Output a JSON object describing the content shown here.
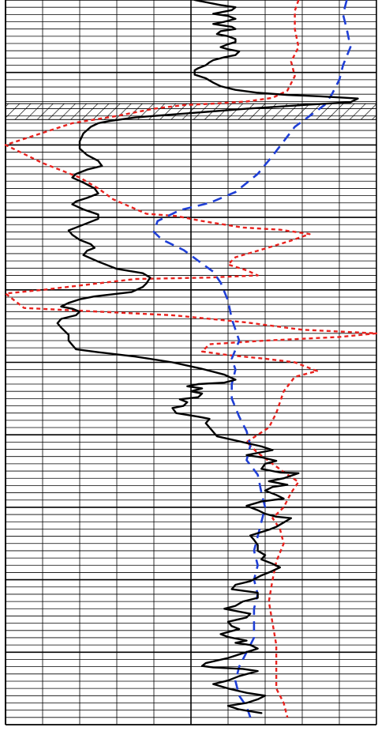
{
  "chart_data": {
    "type": "line",
    "title": "",
    "xlabel": "",
    "ylabel": "",
    "xlim": [
      0,
      10
    ],
    "ylim": [
      0,
      100
    ],
    "y_direction": "down",
    "grid": true,
    "grid_x_minor_step": 1,
    "grid_x_major_step": 5,
    "grid_y_minor_step": 1,
    "grid_y_major_step": 10,
    "legend": "none",
    "hatched_interval": {
      "y_top": 14.3,
      "y_bottom": 16.5,
      "color": "#000000"
    },
    "series": [
      {
        "style": "solid",
        "color": "#000000",
        "points": [
          [
            5.1,
            0.0
          ],
          [
            5.8,
            0.7
          ],
          [
            6.2,
            1.0
          ],
          [
            6.1,
            1.4
          ],
          [
            5.9,
            1.6
          ],
          [
            5.6,
            1.9
          ],
          [
            6.0,
            2.2
          ],
          [
            6.2,
            2.6
          ],
          [
            5.9,
            3.0
          ],
          [
            5.6,
            3.3
          ],
          [
            6.1,
            3.7
          ],
          [
            6.2,
            4.0
          ],
          [
            5.8,
            4.3
          ],
          [
            5.7,
            4.7
          ],
          [
            6.0,
            5.0
          ],
          [
            6.2,
            5.4
          ],
          [
            6.2,
            5.8
          ],
          [
            6.0,
            6.1
          ],
          [
            5.8,
            6.5
          ],
          [
            6.0,
            6.8
          ],
          [
            6.3,
            7.1
          ],
          [
            6.2,
            7.6
          ],
          [
            5.9,
            7.9
          ],
          [
            5.6,
            8.3
          ],
          [
            5.5,
            8.6
          ],
          [
            5.4,
            9.0
          ],
          [
            5.2,
            9.4
          ],
          [
            5.1,
            9.7
          ],
          [
            5.1,
            10.3
          ],
          [
            5.4,
            10.8
          ],
          [
            5.6,
            11.4
          ],
          [
            5.8,
            11.9
          ],
          [
            6.2,
            12.4
          ],
          [
            6.8,
            12.8
          ],
          [
            7.6,
            13.1
          ],
          [
            8.5,
            13.3
          ],
          [
            9.2,
            13.5
          ],
          [
            9.5,
            13.6
          ],
          [
            9.3,
            14.1
          ],
          [
            8.0,
            14.5
          ],
          [
            6.5,
            15.0
          ],
          [
            5.0,
            15.6
          ],
          [
            3.5,
            16.2
          ],
          [
            2.8,
            16.7
          ],
          [
            2.5,
            17.0
          ],
          [
            2.3,
            17.5
          ],
          [
            2.1,
            18.4
          ],
          [
            2.0,
            19.5
          ],
          [
            2.0,
            20.5
          ],
          [
            2.2,
            21.4
          ],
          [
            2.5,
            22.2
          ],
          [
            2.6,
            22.9
          ],
          [
            2.2,
            23.4
          ],
          [
            1.9,
            24.0
          ],
          [
            1.8,
            24.5
          ],
          [
            2.1,
            25.2
          ],
          [
            2.4,
            26.0
          ],
          [
            2.5,
            26.7
          ],
          [
            2.2,
            27.3
          ],
          [
            1.9,
            27.8
          ],
          [
            1.8,
            28.2
          ],
          [
            2.1,
            28.9
          ],
          [
            2.5,
            29.6
          ],
          [
            2.5,
            30.2
          ],
          [
            2.2,
            30.8
          ],
          [
            1.9,
            31.4
          ],
          [
            1.7,
            31.8
          ],
          [
            1.8,
            32.4
          ],
          [
            2.0,
            33.1
          ],
          [
            2.3,
            33.7
          ],
          [
            2.4,
            34.2
          ],
          [
            2.2,
            34.6
          ],
          [
            2.1,
            35.2
          ],
          [
            2.5,
            36.1
          ],
          [
            3.0,
            37.1
          ],
          [
            3.7,
            37.7
          ],
          [
            3.9,
            38.3
          ],
          [
            3.8,
            39.1
          ],
          [
            3.7,
            39.6
          ],
          [
            3.4,
            40.3
          ],
          [
            2.9,
            40.6
          ],
          [
            2.4,
            40.9
          ],
          [
            2.0,
            41.3
          ],
          [
            1.7,
            41.8
          ],
          [
            1.5,
            42.3
          ],
          [
            1.8,
            42.6
          ],
          [
            2.0,
            43.0
          ],
          [
            1.9,
            43.5
          ],
          [
            1.5,
            44.0
          ],
          [
            1.4,
            44.6
          ],
          [
            1.5,
            45.2
          ],
          [
            1.6,
            45.7
          ],
          [
            1.7,
            46.2
          ],
          [
            1.7,
            47.0
          ],
          [
            1.9,
            48.2
          ],
          [
            2.5,
            48.6
          ],
          [
            3.5,
            49.2
          ],
          [
            4.5,
            50.0
          ],
          [
            5.3,
            50.9
          ],
          [
            5.9,
            51.7
          ],
          [
            6.2,
            52.4
          ],
          [
            5.9,
            52.8
          ],
          [
            5.2,
            53.0
          ],
          [
            4.9,
            53.3
          ],
          [
            5.3,
            53.6
          ],
          [
            5.0,
            54.0
          ],
          [
            5.3,
            54.3
          ],
          [
            5.2,
            54.8
          ],
          [
            4.7,
            55.1
          ],
          [
            4.9,
            55.5
          ],
          [
            4.8,
            56.0
          ],
          [
            4.5,
            56.3
          ],
          [
            4.6,
            57.0
          ],
          [
            5.2,
            57.5
          ],
          [
            5.5,
            57.8
          ],
          [
            5.4,
            58.4
          ],
          [
            5.5,
            59.0
          ],
          [
            5.7,
            60.2
          ],
          [
            6.3,
            60.9
          ],
          [
            6.9,
            61.6
          ],
          [
            7.2,
            62.1
          ],
          [
            6.8,
            62.5
          ],
          [
            6.5,
            62.8
          ],
          [
            6.9,
            63.1
          ],
          [
            7.3,
            63.6
          ],
          [
            7.0,
            64.0
          ],
          [
            6.9,
            64.7
          ],
          [
            7.4,
            65.2
          ],
          [
            7.9,
            65.3
          ],
          [
            7.5,
            66.0
          ],
          [
            7.1,
            66.4
          ],
          [
            7.6,
            66.9
          ],
          [
            7.2,
            67.2
          ],
          [
            7.0,
            67.7
          ],
          [
            7.3,
            68.3
          ],
          [
            7.5,
            68.8
          ],
          [
            6.9,
            69.2
          ],
          [
            6.5,
            69.8
          ],
          [
            6.8,
            70.4
          ],
          [
            7.0,
            70.9
          ],
          [
            7.3,
            71.3
          ],
          [
            7.7,
            71.5
          ],
          [
            7.5,
            72.1
          ],
          [
            7.3,
            72.7
          ],
          [
            7.1,
            73.1
          ],
          [
            6.6,
            73.9
          ],
          [
            6.7,
            74.5
          ],
          [
            6.8,
            75.2
          ],
          [
            6.8,
            76.0
          ],
          [
            7.0,
            76.6
          ],
          [
            6.9,
            77.2
          ],
          [
            7.2,
            77.8
          ],
          [
            7.4,
            78.3
          ],
          [
            7.1,
            79.0
          ],
          [
            6.9,
            79.4
          ],
          [
            6.6,
            80.2
          ],
          [
            6.2,
            80.7
          ],
          [
            6.1,
            81.3
          ],
          [
            6.8,
            81.8
          ],
          [
            6.8,
            82.5
          ],
          [
            6.4,
            83.0
          ],
          [
            6.2,
            83.6
          ],
          [
            5.9,
            84.0
          ],
          [
            6.6,
            84.7
          ],
          [
            6.5,
            85.2
          ],
          [
            6.0,
            85.8
          ],
          [
            6.1,
            86.4
          ],
          [
            6.3,
            86.8
          ],
          [
            5.8,
            87.5
          ],
          [
            6.0,
            87.9
          ],
          [
            6.5,
            88.4
          ],
          [
            6.2,
            88.7
          ],
          [
            6.6,
            89.0
          ],
          [
            6.8,
            89.5
          ],
          [
            6.3,
            90.3
          ],
          [
            6.0,
            90.8
          ],
          [
            5.4,
            91.5
          ],
          [
            5.3,
            91.9
          ],
          [
            5.6,
            92.1
          ],
          [
            6.4,
            92.3
          ],
          [
            6.8,
            92.6
          ],
          [
            6.3,
            93.3
          ],
          [
            6.0,
            93.9
          ],
          [
            5.6,
            94.4
          ],
          [
            6.0,
            95.0
          ],
          [
            6.5,
            95.6
          ],
          [
            7.0,
            96.0
          ],
          [
            6.8,
            96.5
          ],
          [
            6.5,
            97.0
          ],
          [
            6.0,
            97.4
          ],
          [
            6.3,
            97.9
          ],
          [
            6.9,
            98.4
          ]
        ]
      },
      {
        "style": "dashed",
        "color": "#e8221e",
        "points": [
          [
            7.9,
            0.0
          ],
          [
            7.8,
            1.5
          ],
          [
            7.8,
            4.0
          ],
          [
            7.9,
            6.5
          ],
          [
            7.7,
            8.5
          ],
          [
            7.8,
            10.5
          ],
          [
            7.6,
            12.5
          ],
          [
            7.2,
            13.5
          ],
          [
            6.5,
            14.0
          ],
          [
            5.6,
            14.3
          ],
          [
            4.8,
            14.5
          ],
          [
            4.0,
            15.0
          ],
          [
            3.0,
            16.0
          ],
          [
            1.8,
            17.0
          ],
          [
            0.9,
            18.5
          ],
          [
            0.3,
            19.5
          ],
          [
            0.0,
            20.0
          ],
          [
            0.4,
            21.0
          ],
          [
            1.0,
            22.5
          ],
          [
            1.5,
            23.5
          ],
          [
            2.0,
            24.5
          ],
          [
            2.5,
            26.0
          ],
          [
            2.9,
            27.5
          ],
          [
            3.8,
            29.5
          ],
          [
            4.6,
            29.8
          ],
          [
            5.3,
            30.5
          ],
          [
            6.4,
            31.4
          ],
          [
            7.4,
            31.7
          ],
          [
            8.2,
            32.3
          ],
          [
            7.7,
            33.2
          ],
          [
            7.0,
            34.3
          ],
          [
            6.2,
            35.5
          ],
          [
            6.0,
            36.5
          ],
          [
            6.5,
            37.3
          ],
          [
            6.8,
            38.0
          ],
          [
            5.5,
            38.3
          ],
          [
            3.5,
            38.5
          ],
          [
            1.0,
            40.0
          ],
          [
            0.0,
            40.5
          ],
          [
            0.5,
            42.5
          ],
          [
            2.5,
            43.0
          ],
          [
            4.5,
            43.5
          ],
          [
            6.5,
            44.5
          ],
          [
            8.0,
            45.5
          ],
          [
            10.0,
            46.0
          ],
          [
            9.0,
            46.5
          ],
          [
            7.0,
            47.0
          ],
          [
            5.5,
            47.5
          ],
          [
            5.3,
            48.5
          ],
          [
            6.0,
            49.0
          ],
          [
            7.0,
            49.5
          ],
          [
            7.8,
            50.0
          ],
          [
            8.4,
            51.2
          ],
          [
            7.8,
            52.0
          ],
          [
            7.5,
            54.0
          ],
          [
            7.3,
            57.0
          ],
          [
            7.1,
            59.0
          ],
          [
            6.8,
            60.0
          ],
          [
            6.5,
            61.0
          ],
          [
            6.8,
            62.5
          ],
          [
            7.2,
            64.0
          ],
          [
            7.6,
            65.5
          ],
          [
            7.9,
            66.5
          ],
          [
            7.7,
            68.0
          ],
          [
            7.5,
            70.0
          ],
          [
            7.2,
            71.5
          ],
          [
            7.4,
            73.0
          ],
          [
            7.5,
            75.0
          ],
          [
            7.3,
            77.5
          ],
          [
            7.2,
            80.0
          ],
          [
            7.1,
            83.0
          ],
          [
            7.2,
            86.0
          ],
          [
            7.3,
            89.0
          ],
          [
            7.3,
            91.0
          ],
          [
            7.3,
            93.0
          ],
          [
            7.3,
            95.0
          ],
          [
            7.5,
            97.0
          ],
          [
            7.6,
            99.0
          ]
        ]
      },
      {
        "style": "dashed",
        "color": "#1f3fd6",
        "points": [
          [
            9.2,
            0.0
          ],
          [
            9.1,
            2.0
          ],
          [
            9.2,
            4.0
          ],
          [
            9.3,
            6.5
          ],
          [
            9.1,
            9.0
          ],
          [
            9.0,
            11.0
          ],
          [
            8.8,
            13.0
          ],
          [
            8.6,
            14.5
          ],
          [
            8.2,
            16.0
          ],
          [
            7.8,
            17.5
          ],
          [
            7.5,
            19.5
          ],
          [
            7.2,
            21.5
          ],
          [
            6.8,
            24.0
          ],
          [
            6.2,
            26.5
          ],
          [
            5.5,
            28.0
          ],
          [
            4.7,
            29.0
          ],
          [
            4.1,
            30.5
          ],
          [
            4.0,
            32.0
          ],
          [
            4.2,
            33.0
          ],
          [
            4.8,
            34.5
          ],
          [
            5.2,
            36.0
          ],
          [
            5.6,
            37.5
          ],
          [
            5.8,
            39.0
          ],
          [
            6.0,
            41.5
          ],
          [
            6.1,
            44.0
          ],
          [
            6.3,
            47.0
          ],
          [
            6.1,
            49.5
          ],
          [
            6.2,
            51.0
          ],
          [
            6.1,
            53.0
          ],
          [
            6.1,
            55.0
          ],
          [
            6.3,
            57.5
          ],
          [
            6.5,
            59.5
          ],
          [
            6.6,
            61.5
          ],
          [
            6.5,
            63.5
          ],
          [
            6.8,
            65.5
          ],
          [
            6.9,
            68.0
          ],
          [
            7.0,
            70.0
          ],
          [
            6.9,
            72.0
          ],
          [
            6.8,
            74.0
          ],
          [
            6.7,
            76.0
          ],
          [
            6.8,
            78.0
          ],
          [
            6.7,
            80.0
          ],
          [
            6.8,
            82.0
          ],
          [
            6.7,
            84.0
          ],
          [
            6.7,
            86.0
          ],
          [
            6.7,
            88.0
          ],
          [
            6.5,
            90.0
          ],
          [
            6.3,
            92.0
          ],
          [
            6.2,
            94.0
          ],
          [
            6.3,
            96.0
          ],
          [
            6.5,
            97.5
          ],
          [
            6.6,
            99.0
          ]
        ]
      }
    ]
  }
}
